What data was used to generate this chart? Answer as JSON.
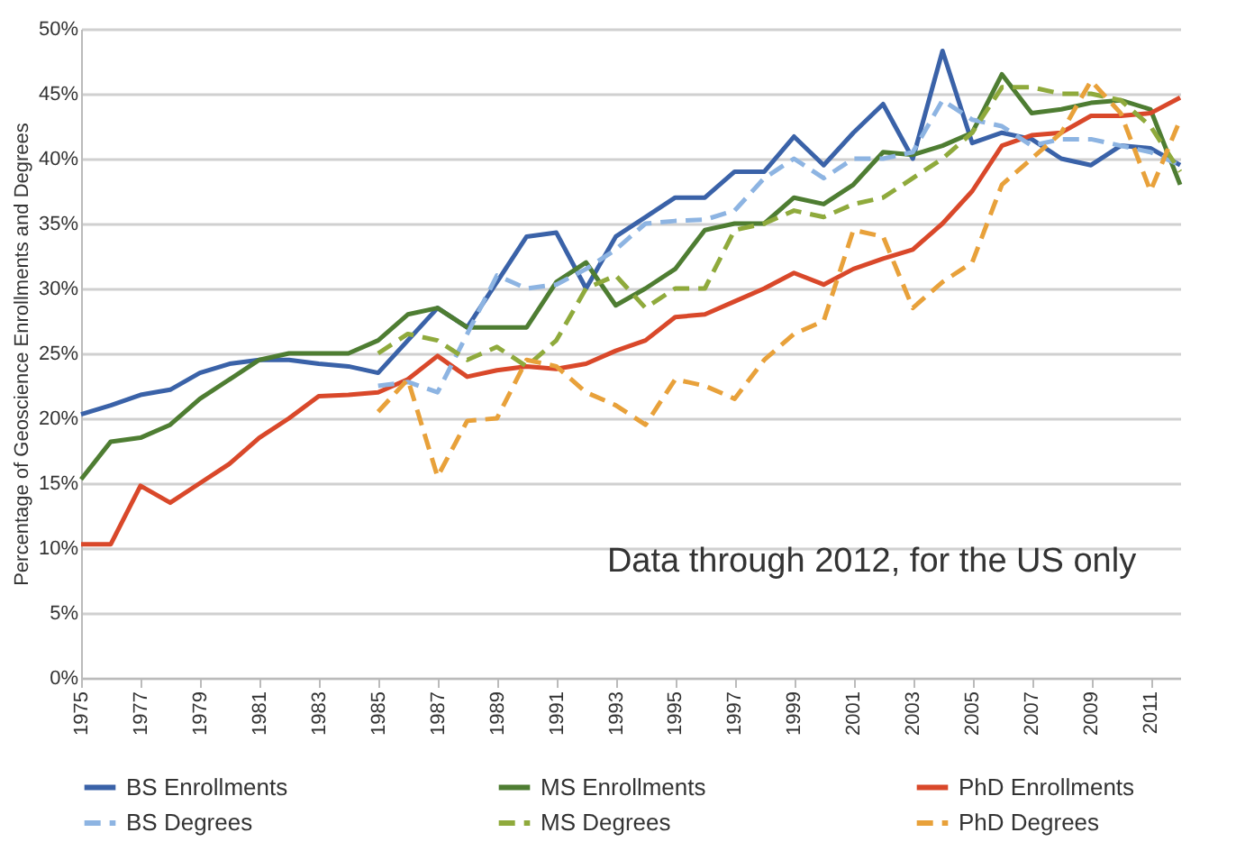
{
  "chart_data": {
    "type": "line",
    "ylabel": "Percentage of Geoscience Enrollments and Degrees",
    "x": [
      1975,
      1976,
      1977,
      1978,
      1979,
      1980,
      1981,
      1982,
      1983,
      1984,
      1985,
      1986,
      1987,
      1988,
      1989,
      1990,
      1991,
      1992,
      1993,
      1994,
      1995,
      1996,
      1997,
      1998,
      1999,
      2000,
      2001,
      2002,
      2003,
      2004,
      2005,
      2006,
      2007,
      2008,
      2009,
      2010,
      2011,
      2012
    ],
    "xlim": [
      1975,
      2012
    ],
    "xticks": [
      1975,
      1977,
      1979,
      1981,
      1983,
      1985,
      1987,
      1989,
      1991,
      1993,
      1995,
      1997,
      1999,
      2001,
      2003,
      2005,
      2007,
      2009,
      2011
    ],
    "ylim": [
      0,
      50
    ],
    "yticks": [
      {
        "value": 0,
        "label": "0%"
      },
      {
        "value": 5,
        "label": "5%"
      },
      {
        "value": 10,
        "label": "10%"
      },
      {
        "value": 15,
        "label": "15%"
      },
      {
        "value": 20,
        "label": "20%"
      },
      {
        "value": 25,
        "label": "25%"
      },
      {
        "value": 30,
        "label": "30%"
      },
      {
        "value": 35,
        "label": "35%"
      },
      {
        "value": 40,
        "label": "40%"
      },
      {
        "value": 45,
        "label": "45%"
      },
      {
        "value": 50,
        "label": "50%"
      }
    ],
    "grid": "y",
    "legend": "bottom",
    "marker": "none",
    "annotations": [
      "Data through 2012, for the US only"
    ],
    "series": [
      {
        "name": "BS Enrollments",
        "color": "#3a62a8",
        "line_style": "solid",
        "values": [
          20.3,
          21,
          21.8,
          22.2,
          23.5,
          24.2,
          24.5,
          24.5,
          24.2,
          24,
          23.5,
          26,
          28.5,
          27,
          30.5,
          34,
          34.3,
          30,
          34,
          35.5,
          37,
          37,
          39,
          39,
          41.7,
          39.5,
          42,
          44.2,
          40,
          48.3,
          41.2,
          42,
          41.5,
          40,
          39.5,
          41,
          40.8,
          39.5
        ]
      },
      {
        "name": "MS Enrollments",
        "color": "#4e7d32",
        "line_style": "solid",
        "values": [
          15.3,
          18.2,
          18.5,
          19.5,
          21.5,
          23,
          24.5,
          25,
          25,
          25,
          26,
          28,
          28.5,
          27,
          27,
          27,
          30.5,
          32,
          28.7,
          30,
          31.5,
          34.5,
          35,
          35,
          37,
          36.5,
          38,
          40.5,
          40.3,
          41,
          42,
          46.5,
          43.5,
          43.8,
          44.3,
          44.5,
          43.8,
          38
        ]
      },
      {
        "name": "PhD Enrollments",
        "color": "#d9482a",
        "line_style": "solid",
        "values": [
          10.3,
          10.3,
          14.8,
          13.5,
          15,
          16.5,
          18.5,
          20,
          21.7,
          21.8,
          22,
          23,
          24.8,
          23.2,
          23.7,
          24,
          23.8,
          24.2,
          25.2,
          26,
          27.8,
          28,
          29,
          30,
          31.2,
          30.3,
          31.5,
          32.3,
          33,
          35,
          37.5,
          41,
          41.8,
          42,
          43.3,
          43.3,
          43.5,
          44.7
        ]
      },
      {
        "name": "BS Degrees",
        "color": "#8db4e2",
        "line_style": "dashed",
        "x": [
          1985,
          1986,
          1987,
          1988,
          1989,
          1990,
          1991,
          1992,
          1993,
          1994,
          1995,
          1996,
          1997,
          1998,
          1999,
          2000,
          2001,
          2002,
          2003,
          2004,
          2005,
          2006,
          2007,
          2008,
          2009,
          2010,
          2011,
          2012
        ],
        "values": [
          22.5,
          22.8,
          22,
          26.5,
          31,
          30,
          30.3,
          31.5,
          33,
          35,
          35.2,
          35.3,
          36,
          38.5,
          40,
          38.5,
          40,
          40,
          40.5,
          44.5,
          43,
          42.5,
          41,
          41.5,
          41.5,
          41,
          40.5,
          39.5
        ]
      },
      {
        "name": "MS Degrees",
        "color": "#8faa3c",
        "line_style": "dashed",
        "x": [
          1985,
          1986,
          1987,
          1988,
          1989,
          1990,
          1991,
          1992,
          1993,
          1994,
          1995,
          1996,
          1997,
          1998,
          1999,
          2000,
          2001,
          2002,
          2003,
          2004,
          2005,
          2006,
          2007,
          2008,
          2009,
          2010,
          2011,
          2012
        ],
        "values": [
          25,
          26.5,
          26,
          24.5,
          25.5,
          24,
          26,
          30,
          31,
          28.5,
          30,
          30,
          34.5,
          35,
          36,
          35.5,
          36.5,
          37,
          38.5,
          40,
          42,
          45.5,
          45.5,
          45,
          45,
          44.5,
          42.5,
          39
        ]
      },
      {
        "name": "PhD Degrees",
        "color": "#e8a13a",
        "line_style": "dashed",
        "x": [
          1985,
          1986,
          1987,
          1988,
          1989,
          1990,
          1991,
          1992,
          1993,
          1994,
          1995,
          1996,
          1997,
          1998,
          1999,
          2000,
          2001,
          2002,
          2003,
          2004,
          2005,
          2006,
          2007,
          2008,
          2009,
          2010,
          2011,
          2012
        ],
        "values": [
          20.5,
          23,
          15.5,
          19.8,
          20,
          24.5,
          24,
          22,
          21,
          19.5,
          23,
          22.5,
          21.5,
          24.5,
          26.5,
          27.5,
          34.5,
          34,
          28.5,
          30.5,
          32,
          38,
          40,
          42,
          46,
          43.5,
          37.5,
          43
        ]
      }
    ]
  }
}
